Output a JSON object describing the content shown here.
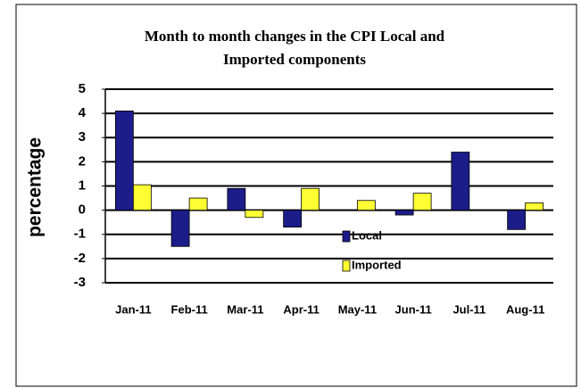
{
  "chart_data": {
    "type": "bar",
    "title": [
      "Month to month changes in the CPI Local and",
      "Imported components"
    ],
    "y_label": "percentage",
    "categories": [
      "Jan-11",
      "Feb-11",
      "Mar-11",
      "Apr-11",
      "May-11",
      "Jun-11",
      "Jul-11",
      "Aug-11"
    ],
    "series": [
      {
        "name": "Local",
        "color": "#1c1c8a",
        "values": [
          4.1,
          -1.5,
          0.9,
          -0.7,
          0,
          -0.2,
          2.4,
          -0.8
        ]
      },
      {
        "name": "Imported",
        "color": "#ffff33",
        "values": [
          1.05,
          0.5,
          -0.3,
          0.9,
          0.4,
          0.7,
          0,
          0.3
        ]
      }
    ],
    "ylim": [
      -3,
      5
    ],
    "yticks": [
      -3,
      -2,
      -1,
      0,
      1,
      2,
      3,
      4,
      5
    ],
    "grid": true
  }
}
